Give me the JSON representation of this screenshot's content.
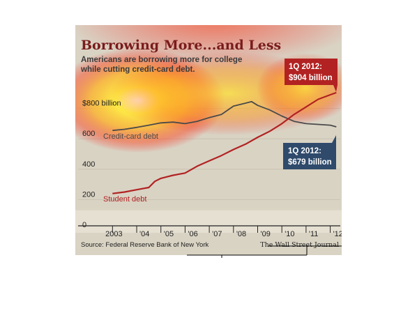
{
  "chart_data": {
    "type": "line",
    "title": "Borrowing More...and Less",
    "subtitle_lines": [
      "Americans are borrowing more for college",
      "while cutting credit-card debt."
    ],
    "ylabel": "",
    "xlabel": "",
    "ylim": [
      0,
      1000
    ],
    "xlim": [
      2002.5,
      2012.3
    ],
    "y_ticks": [
      {
        "value": 0,
        "label": "0"
      },
      {
        "value": 200,
        "label": "200"
      },
      {
        "value": 400,
        "label": "400"
      },
      {
        "value": 600,
        "label": "600"
      },
      {
        "value": 800,
        "label": "$800 billion"
      }
    ],
    "x_ticks": [
      {
        "value": 2003,
        "label": "2003"
      },
      {
        "value": 2004,
        "label": "'04"
      },
      {
        "value": 2005,
        "label": "'05"
      },
      {
        "value": 2006,
        "label": "'06"
      },
      {
        "value": 2007,
        "label": "'07"
      },
      {
        "value": 2008,
        "label": "'08"
      },
      {
        "value": 2009,
        "label": "'09"
      },
      {
        "value": 2010,
        "label": "'10"
      },
      {
        "value": 2011,
        "label": "'11"
      },
      {
        "value": 2012,
        "label": "'12"
      }
    ],
    "series": [
      {
        "name": "Credit-card debt",
        "color": "#4a4a4a",
        "x": [
          2003.0,
          2003.5,
          2004.0,
          2004.5,
          2005.0,
          2005.5,
          2006.0,
          2006.5,
          2007.0,
          2007.5,
          2008.0,
          2008.5,
          2008.75,
          2009.0,
          2009.5,
          2010.0,
          2010.5,
          2011.0,
          2011.5,
          2012.0,
          2012.25
        ],
        "values": [
          655,
          663,
          675,
          690,
          705,
          710,
          700,
          715,
          740,
          760,
          815,
          835,
          845,
          820,
          790,
          750,
          715,
          700,
          695,
          690,
          679
        ]
      },
      {
        "name": "Student debt",
        "color": "#b22222",
        "x": [
          2003.0,
          2003.5,
          2004.0,
          2004.5,
          2004.75,
          2005.0,
          2005.5,
          2006.0,
          2006.5,
          2007.0,
          2007.5,
          2008.0,
          2008.5,
          2009.0,
          2009.5,
          2010.0,
          2010.5,
          2011.0,
          2011.5,
          2012.0,
          2012.25
        ],
        "values": [
          240,
          250,
          265,
          280,
          320,
          340,
          360,
          375,
          420,
          455,
          490,
          530,
          565,
          610,
          650,
          700,
          760,
          810,
          860,
          890,
          904
        ]
      }
    ],
    "callouts": [
      {
        "series": "Student debt",
        "lines": [
          "1Q 2012:",
          "$904 billion"
        ],
        "color": "#b22222"
      },
      {
        "series": "Credit-card debt",
        "lines": [
          "1Q 2012:",
          "$679 billion"
        ],
        "color": "#2f4a6b"
      }
    ],
    "source": "Source: Federal Reserve Bank of New York",
    "brand": "The Wall Street Journal",
    "colors": {
      "background": "#d9d3c4",
      "student": "#b22222",
      "credit": "#4a4a4a",
      "credit_callout": "#2f4a6b",
      "title": "#7a1c1c"
    }
  }
}
